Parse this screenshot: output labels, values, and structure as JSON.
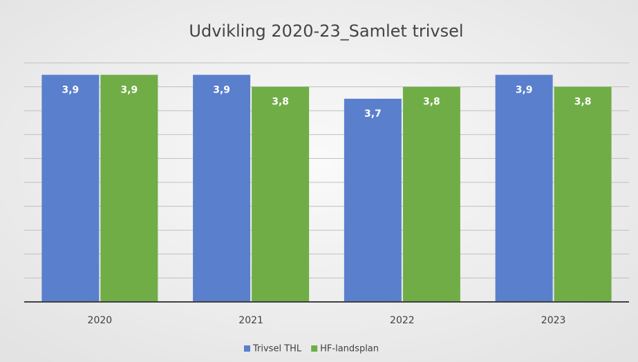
{
  "chart_data": {
    "type": "bar",
    "title": "Udvikling 2020-23_Samlet trivsel",
    "categories": [
      "2020",
      "2021",
      "2022",
      "2023"
    ],
    "series": [
      {
        "name": "Trivsel THL",
        "color": "#5a7fcc",
        "values": [
          3.9,
          3.9,
          3.7,
          3.9
        ],
        "value_labels": [
          "3,9",
          "3,9",
          "3,7",
          "3,9"
        ]
      },
      {
        "name": "HF-landsplan",
        "color": "#70ad47",
        "values": [
          3.9,
          3.8,
          3.8,
          3.8
        ],
        "value_labels": [
          "3,9",
          "3,8",
          "3,8",
          "3,8"
        ]
      }
    ],
    "ylim": [
      2.0,
      4.0
    ],
    "yticks": [
      2.0,
      2.2,
      2.4,
      2.6,
      2.8,
      3.0,
      3.2,
      3.4,
      3.6,
      3.8,
      4.0
    ],
    "grid": true
  }
}
